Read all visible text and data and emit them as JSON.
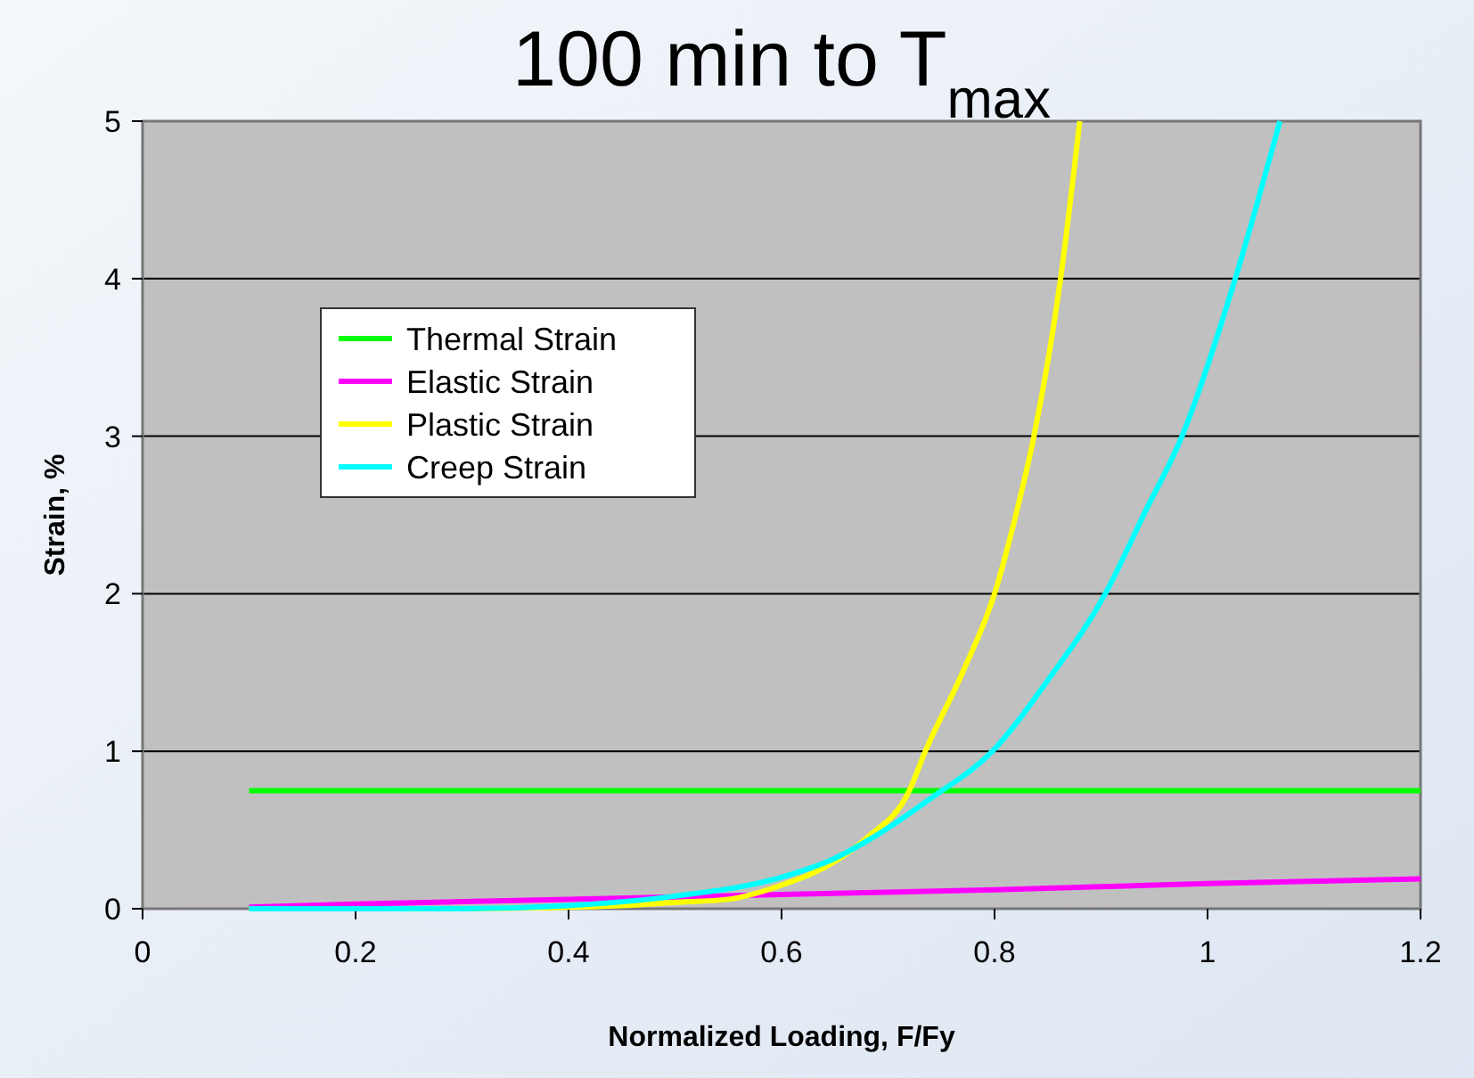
{
  "chart_data": {
    "type": "line",
    "title": "100 min to T$_{max}$",
    "xlabel": "Normalized Loading, F/Fy",
    "ylabel": "Strain, %",
    "xlim": [
      0,
      1.2
    ],
    "xticks": [
      0,
      0.2,
      0.4,
      0.6,
      0.8,
      1,
      1.2
    ],
    "ylim": [
      0,
      5
    ],
    "yticks": [
      0,
      1,
      2,
      3,
      4,
      5
    ],
    "grid": "y",
    "legend": "top left",
    "marker": "none",
    "line_style": "solid",
    "series": [
      {
        "name": "Thermal Strain",
        "color": "#00ff00",
        "x": [
          0.1,
          1.2
        ],
        "values": [
          0.75,
          0.75
        ]
      },
      {
        "name": "Elastic Strain",
        "color": "#ff00ff",
        "x": [
          0.1,
          0.2,
          0.4,
          0.6,
          0.8,
          1.0,
          1.2
        ],
        "values": [
          0.01,
          0.03,
          0.06,
          0.09,
          0.12,
          0.16,
          0.19
        ]
      },
      {
        "name": "Plastic Strain",
        "color": "#ffff00",
        "x": [
          0.1,
          0.3,
          0.4,
          0.45,
          0.5,
          0.55,
          0.6,
          0.65,
          0.68,
          0.72,
          0.735,
          0.77,
          0.8,
          0.82,
          0.837,
          0.862,
          0.88
        ],
        "values": [
          0,
          0,
          0.01,
          0.02,
          0.04,
          0.06,
          0.15,
          0.3,
          0.45,
          0.75,
          1,
          1.5,
          2,
          2.5,
          3,
          4,
          5
        ]
      },
      {
        "name": "Creep Strain",
        "color": "#00ffff",
        "x": [
          0.1,
          0.3,
          0.4,
          0.5,
          0.6,
          0.65,
          0.69,
          0.74,
          0.798,
          0.85,
          0.904,
          0.94,
          0.976,
          1.026,
          1.068
        ],
        "values": [
          0,
          0,
          0.02,
          0.08,
          0.2,
          0.32,
          0.47,
          0.7,
          1,
          1.45,
          2,
          2.5,
          3,
          4,
          5
        ]
      }
    ]
  }
}
